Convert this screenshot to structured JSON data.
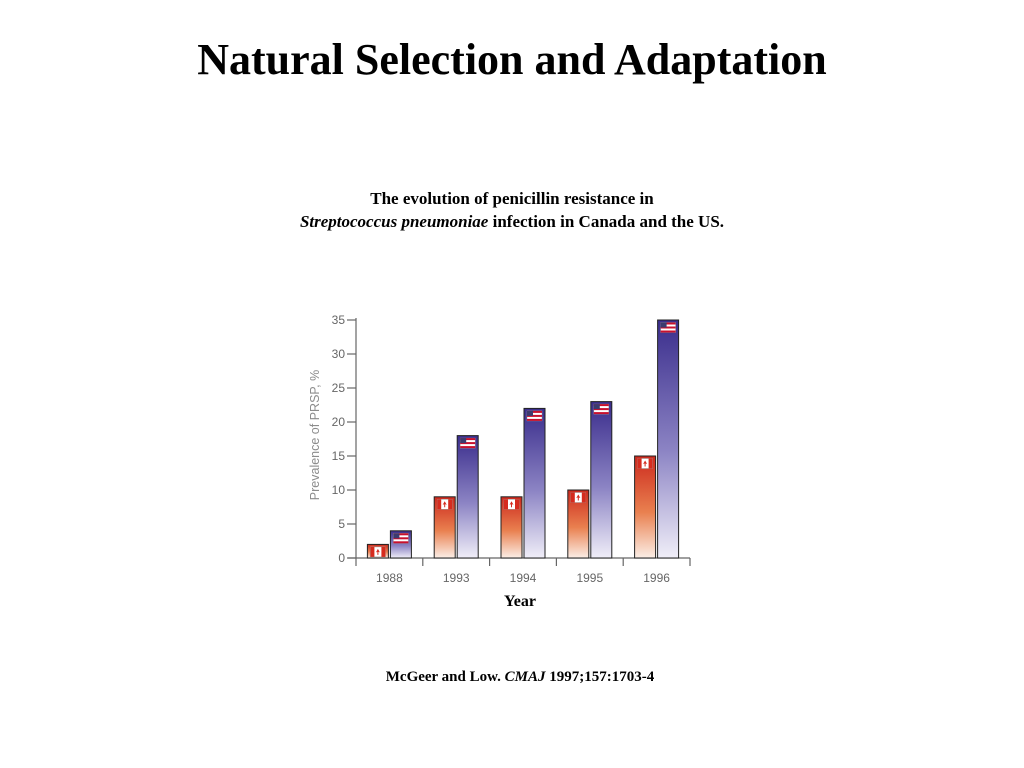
{
  "slide": {
    "title": "Natural Selection and Adaptation",
    "caption_line1": "The evolution of penicillin resistance in",
    "caption_species": "Streptococcus pneumoniae",
    "caption_rest": " infection in Canada and the US.",
    "citation_authors": "McGeer and Low. ",
    "citation_journal": "CMAJ",
    "citation_ref": " 1997;157:1703-4"
  },
  "chart_data": {
    "type": "bar",
    "title": "",
    "xlabel": "Year",
    "ylabel": "Prevalence of PRSP, %",
    "categories": [
      "1988",
      "1993",
      "1994",
      "1995",
      "1996"
    ],
    "series": [
      {
        "name": "Canada",
        "values": [
          2,
          9,
          9,
          10,
          15
        ],
        "color": "#cc2a1e",
        "flag": "canada-flag-icon"
      },
      {
        "name": "US",
        "values": [
          4,
          18,
          22,
          23,
          35
        ],
        "color": "#3b2f8f",
        "flag": "us-flag-icon"
      }
    ],
    "ylim": [
      0,
      35
    ],
    "yticks": [
      0,
      5,
      10,
      15,
      20,
      25,
      30,
      35
    ],
    "grid": false,
    "legend": "none (flags on bars)"
  }
}
